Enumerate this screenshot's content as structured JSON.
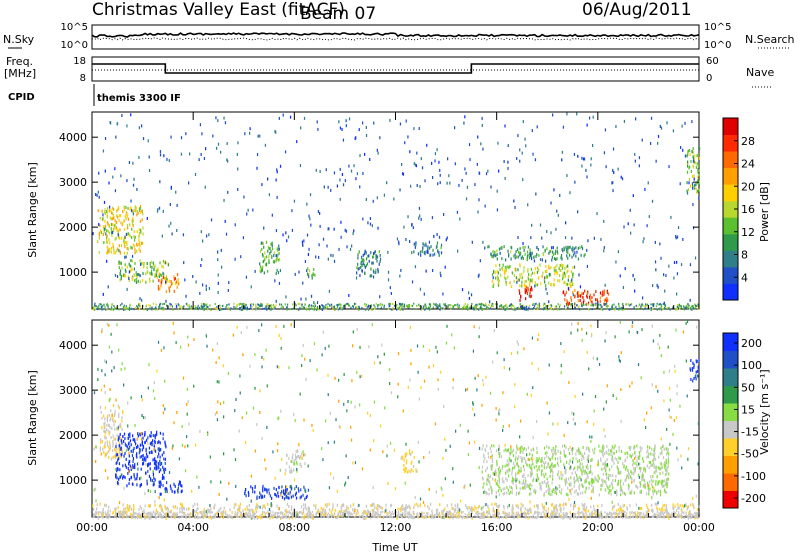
{
  "header": {
    "site": "Christmas Valley East (fitACF)",
    "beam": "Beam 07",
    "date": "06/Aug/2011"
  },
  "sky_panel": {
    "left_label": "N.Sky",
    "right_label": "N.Search",
    "tick_top": "10^5",
    "tick_bottom": "10^0"
  },
  "freq_panel": {
    "left_label_1": "Freq.",
    "left_label_2": "[MHz]",
    "right_label": "Nave",
    "left_ticks": [
      "18",
      "8"
    ],
    "right_ticks": [
      "60",
      "0"
    ]
  },
  "cpid": {
    "label": "CPID",
    "text": "themis 3300 IF"
  },
  "chart_data": [
    {
      "type": "heatmap",
      "name": "power",
      "ylabel": "Slant Range [km]",
      "ylim": [
        180,
        4560
      ],
      "yticks": [
        "1000",
        "2000",
        "3000",
        "4000"
      ],
      "xlabel": "",
      "xticks": [
        "00:00",
        "04:00",
        "08:00",
        "12:00",
        "16:00",
        "20:00",
        "00:00"
      ],
      "colorbar": {
        "label": "Power [dB]",
        "ticks": [
          "4",
          "8",
          "12",
          "16",
          "20",
          "24",
          "28"
        ],
        "range": [
          0,
          32
        ],
        "colors": [
          "#1030ff",
          "#2050c8",
          "#2f7f8a",
          "#2e9a4a",
          "#5cc02e",
          "#b8d830",
          "#ffd000",
          "#ffa000",
          "#ff6a00",
          "#ff2a00",
          "#e00000"
        ]
      },
      "features": [
        {
          "t": [
            0.2,
            2.0
          ],
          "range": [
            1450,
            2500
          ],
          "value": 18
        },
        {
          "t": [
            1.0,
            3.0
          ],
          "range": [
            800,
            1300
          ],
          "value": 14
        },
        {
          "t": [
            2.6,
            3.4
          ],
          "range": [
            600,
            1000
          ],
          "value": 22
        },
        {
          "t": [
            6.6,
            7.4
          ],
          "range": [
            1000,
            1700
          ],
          "value": 12
        },
        {
          "t": [
            8.4,
            8.8
          ],
          "range": [
            900,
            1200
          ],
          "value": 10
        },
        {
          "t": [
            10.4,
            11.4
          ],
          "range": [
            900,
            1500
          ],
          "value": 8
        },
        {
          "t": [
            12.6,
            13.8
          ],
          "range": [
            1400,
            1700
          ],
          "value": 8
        },
        {
          "t": [
            15.6,
            19.6
          ],
          "range": [
            1300,
            1600
          ],
          "value": 10
        },
        {
          "t": [
            15.8,
            19.0
          ],
          "range": [
            700,
            1200
          ],
          "value": 16
        },
        {
          "t": [
            16.8,
            17.4
          ],
          "range": [
            400,
            700
          ],
          "value": 29
        },
        {
          "t": [
            18.6,
            20.4
          ],
          "range": [
            300,
            650
          ],
          "value": 27
        },
        {
          "t": [
            23.5,
            24.0
          ],
          "range": [
            2800,
            3800
          ],
          "value": 14
        }
      ]
    },
    {
      "type": "heatmap",
      "name": "velocity",
      "ylabel": "Slant Range [km]",
      "ylim": [
        180,
        4560
      ],
      "yticks": [
        "1000",
        "2000",
        "3000",
        "4000"
      ],
      "xlabel": "Time UT",
      "xticks": [
        "00:00",
        "04:00",
        "08:00",
        "12:00",
        "16:00",
        "20:00",
        "00:00"
      ],
      "colorbar": {
        "label": "Velocity [m s⁻¹]",
        "ticks": [
          "200",
          "100",
          "50",
          "15",
          "-15",
          "-50",
          "-100",
          "-200"
        ],
        "range": [
          -250,
          250
        ],
        "colors": [
          "#ee0000",
          "#ff6a00",
          "#ffa000",
          "#ffd02a",
          "#c8c8c8",
          "#88dd44",
          "#2e9a4a",
          "#2f7f8a",
          "#2050c8",
          "#1030ff"
        ]
      },
      "features": [
        {
          "t": [
            0.3,
            1.2
          ],
          "range": [
            1500,
            2700
          ],
          "value": -40
        },
        {
          "t": [
            0.9,
            2.9
          ],
          "range": [
            900,
            2100
          ],
          "value": 220
        },
        {
          "t": [
            2.6,
            3.6
          ],
          "range": [
            700,
            1000
          ],
          "value": 220
        },
        {
          "t": [
            6.0,
            8.6
          ],
          "range": [
            600,
            900
          ],
          "value": 200
        },
        {
          "t": [
            7.6,
            8.4
          ],
          "range": [
            1200,
            1700
          ],
          "value": -20
        },
        {
          "t": [
            12.2,
            12.8
          ],
          "range": [
            1200,
            1700
          ],
          "value": -70
        },
        {
          "t": [
            15.4,
            22.8
          ],
          "range": [
            700,
            1800
          ],
          "value": 0
        },
        {
          "t": [
            23.6,
            24.0
          ],
          "range": [
            3200,
            3700
          ],
          "value": 210
        },
        {
          "t": [
            0.0,
            24.0
          ],
          "range": [
            180,
            500
          ],
          "value": -40
        }
      ]
    }
  ]
}
